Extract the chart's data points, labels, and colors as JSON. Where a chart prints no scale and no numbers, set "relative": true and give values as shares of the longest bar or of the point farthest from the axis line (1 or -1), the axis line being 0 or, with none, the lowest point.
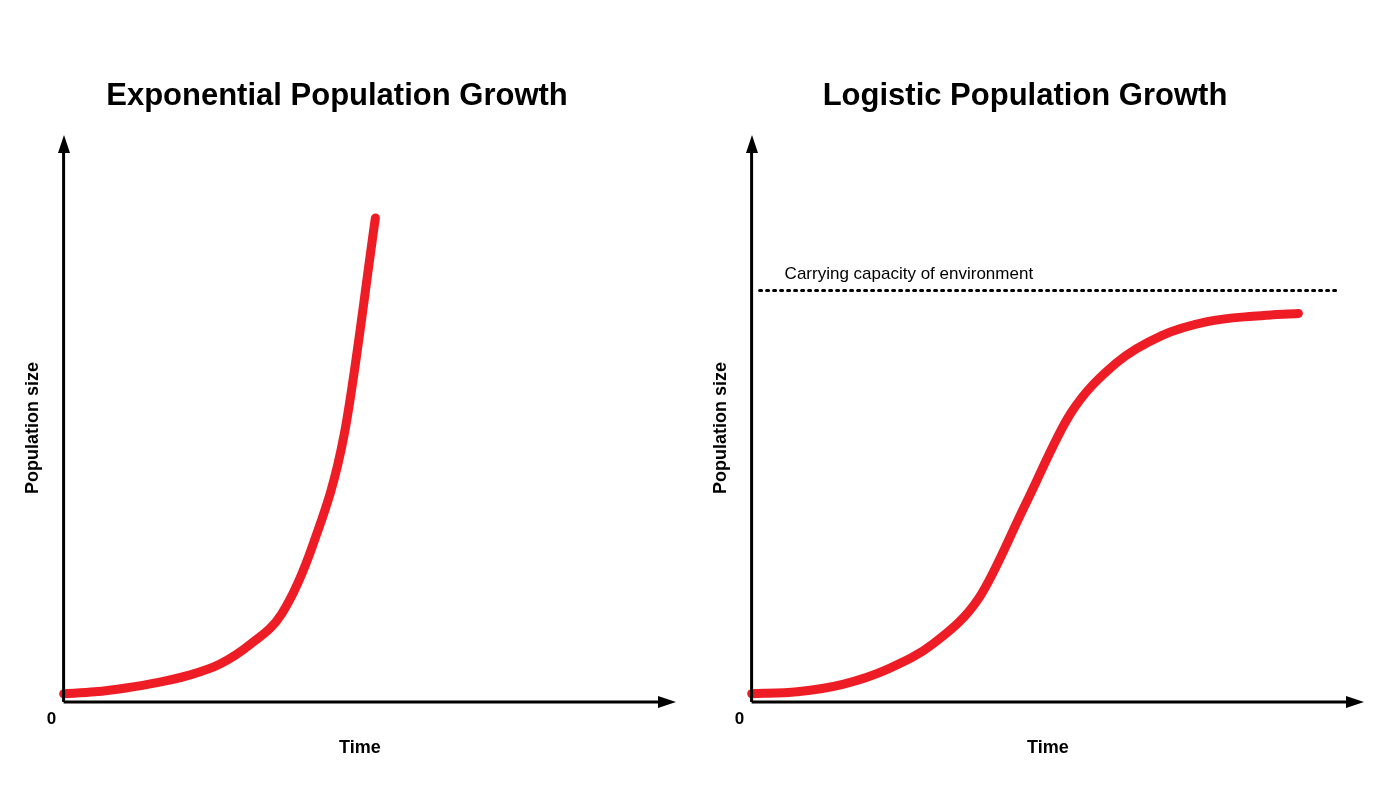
{
  "chart_data": [
    {
      "type": "line",
      "title": "Exponential Population Growth",
      "xlabel": "Time",
      "ylabel": "Population size",
      "relative": true,
      "marker": "none",
      "line_style": "solid",
      "annotations": [
        "0"
      ],
      "categories": [
        null,
        null,
        null,
        null,
        null,
        null,
        null,
        null,
        null,
        null,
        null,
        null,
        null,
        null,
        null,
        null,
        null,
        null,
        null,
        null
      ],
      "series": [
        {
          "color": "#ee1c25",
          "values": [
            0.015,
            0.019,
            0.027,
            0.038,
            0.053,
            0.076,
            0.118,
            0.181,
            0.324,
            0.552,
            1,
            null,
            null,
            null,
            null,
            null,
            null,
            null,
            null,
            null
          ]
        }
      ]
    },
    {
      "type": "line",
      "title": "Logistic Population Growth",
      "xlabel": "Time",
      "ylabel": "Population size",
      "relative": true,
      "marker": "none",
      "line_style": "solid",
      "annotations": [
        "0"
      ],
      "categories": [
        null,
        null,
        null,
        null,
        null,
        null,
        null,
        null,
        null,
        null,
        null,
        null,
        null,
        null
      ],
      "series": [
        {
          "color": "#ee1c25",
          "values": [
            0.019,
            0.024,
            0.043,
            0.083,
            0.149,
            0.268,
            0.505,
            0.742,
            0.872,
            0.943,
            0.979,
            0.993,
            1,
            null
          ]
        }
      ],
      "ref_lines": [
        {
          "axis": "y",
          "value": 1.059,
          "label": "Carrying capacity of environment",
          "line_style": "dotted",
          "color": "#000000"
        }
      ]
    }
  ]
}
